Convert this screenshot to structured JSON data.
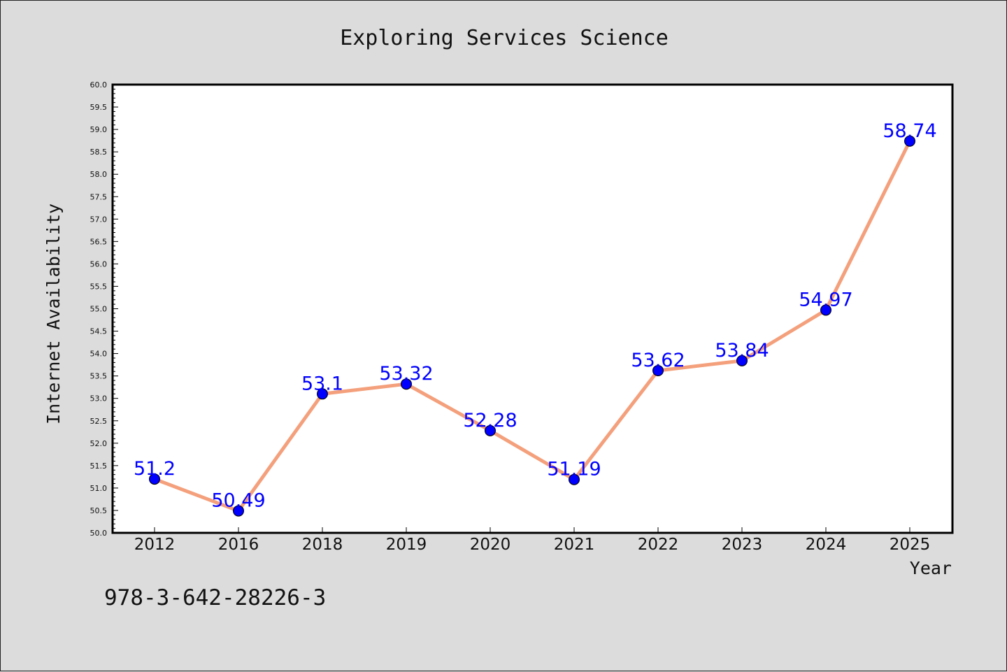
{
  "chart_data": {
    "type": "line",
    "title": "Exploring Services Science",
    "xlabel": "Year",
    "ylabel": "Internet Availability",
    "categories": [
      "2012",
      "2016",
      "2018",
      "2019",
      "2020",
      "2021",
      "2022",
      "2023",
      "2024",
      "2025"
    ],
    "series": [
      {
        "values": [
          51.2,
          50.49,
          53.1,
          53.32,
          52.28,
          51.19,
          53.62,
          53.84,
          54.97,
          58.74
        ],
        "labels": [
          "51.2",
          "50.49",
          "53.1",
          "53.32",
          "52.28",
          "51.19",
          "53.62",
          "53.84",
          "54.97",
          "58.74"
        ],
        "line_color": "#f4a07c",
        "marker_color": "#0000ff"
      }
    ],
    "ylim": [
      50.0,
      60.0
    ],
    "yticks": [
      "50.0",
      "50.5",
      "51.0",
      "51.5",
      "52.0",
      "52.5",
      "53.0",
      "53.5",
      "54.0",
      "54.5",
      "55.0",
      "55.5",
      "56.0",
      "56.5",
      "57.0",
      "57.5",
      "58.0",
      "58.5",
      "59.0",
      "59.5",
      "60.0"
    ],
    "grid": false,
    "data_label_color": "#0000ff"
  },
  "footer_text": "978-3-642-28226-3",
  "colors": {
    "background": "#dcdcdc",
    "plot_background": "#ffffff",
    "line": "#f4a07c",
    "marker": "#0000ff"
  }
}
